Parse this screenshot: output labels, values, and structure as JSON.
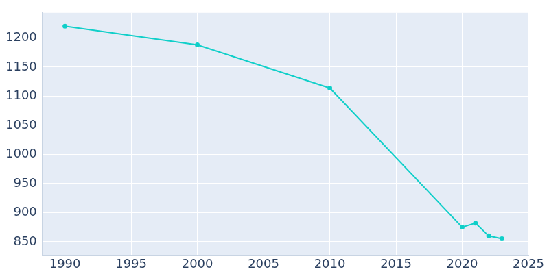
{
  "chart_data": {
    "type": "line",
    "x": [
      1990,
      2000,
      2010,
      2020,
      2021,
      2022,
      2023
    ],
    "values": [
      1220,
      1188,
      1114,
      875,
      882,
      860,
      855
    ],
    "color": "#10cfc9",
    "marker": "circle",
    "xlim": [
      1988.3,
      2025
    ],
    "xticks": [
      1990,
      1995,
      2000,
      2005,
      2010,
      2015,
      2020,
      2025
    ],
    "ylim": [
      827,
      1243
    ],
    "yticks": [
      850,
      900,
      950,
      1000,
      1050,
      1100,
      1150,
      1200
    ],
    "grid": true
  }
}
